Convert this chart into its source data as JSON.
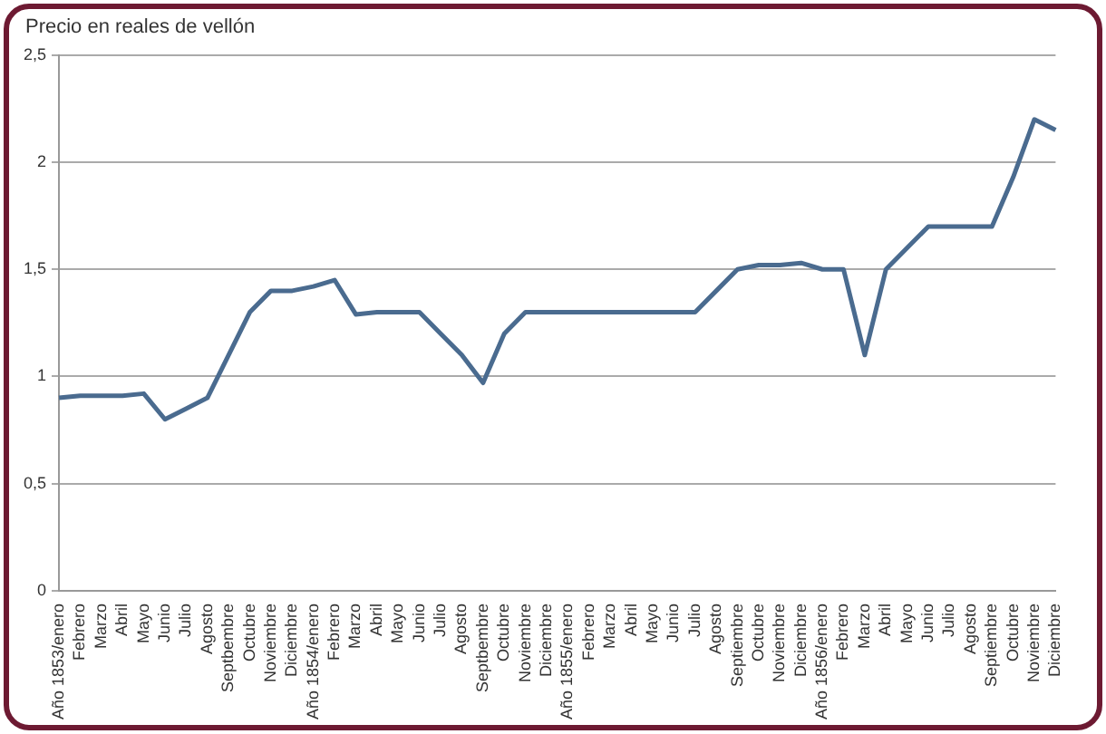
{
  "chart_data": {
    "type": "line",
    "ylabel": "Precio en reales de vellón",
    "categories": [
      "Año 1853/enero",
      "Febrero",
      "Marzo",
      "Abril",
      "Mayo",
      "Junio",
      "Julio",
      "Agosto",
      "Septbembre",
      "Octubre",
      "Noviembre",
      "Diciembre",
      "Año 1854/enero",
      "Febrero",
      "Marzo",
      "Abril",
      "Mayo",
      "Junio",
      "Julio",
      "Agosto",
      "Septbembre",
      "Octubre",
      "Noviembre",
      "Diciembre",
      "Año 1855/enero",
      "Febrero",
      "Marzo",
      "Abril",
      "Mayo",
      "Junio",
      "Julio",
      "Agosto",
      "Septiembre",
      "Octubre",
      "Noviembre",
      "Diciembre",
      "Año 1856/enero",
      "Febrero",
      "Marzo",
      "Abril",
      "Mayo",
      "Junio",
      "Julio",
      "Agosto",
      "Septiembre",
      "Octubre",
      "Noviembre",
      "Diciembre"
    ],
    "series": [
      {
        "color": "#4a6b8f",
        "values": [
          0.9,
          0.91,
          0.91,
          0.91,
          0.92,
          0.8,
          0.85,
          0.9,
          1.1,
          1.3,
          1.4,
          1.4,
          1.42,
          1.45,
          1.29,
          1.3,
          1.3,
          1.3,
          1.2,
          1.1,
          0.97,
          1.2,
          1.3,
          1.3,
          1.3,
          1.3,
          1.3,
          1.3,
          1.3,
          1.3,
          1.3,
          1.4,
          1.5,
          1.52,
          1.52,
          1.53,
          1.5,
          1.5,
          1.1,
          1.5,
          1.6,
          1.7,
          1.7,
          1.7,
          1.7,
          1.93,
          2.2,
          2.15
        ]
      }
    ],
    "ylim": [
      0,
      2.5
    ],
    "yticks": [
      {
        "value": 0,
        "label": "0"
      },
      {
        "value": 0.5,
        "label": "0,5"
      },
      {
        "value": 1,
        "label": "1"
      },
      {
        "value": 1.5,
        "label": "1,5"
      },
      {
        "value": 2,
        "label": "2"
      },
      {
        "value": 2.5,
        "label": "2,5"
      }
    ],
    "grid": "y",
    "legend": false,
    "marker": "none",
    "line_style": "solid"
  }
}
